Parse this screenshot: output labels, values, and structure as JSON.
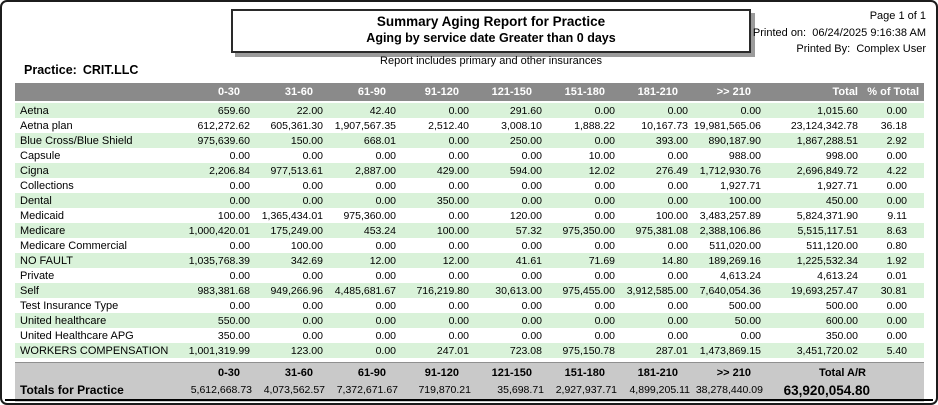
{
  "meta": {
    "page_label": "Page 1 of 1",
    "printed_on_label": "Printed on:",
    "printed_on_value": "06/24/2025  9:16:38 AM",
    "printed_by_label": "Printed By:",
    "printed_by_value": "Complex User"
  },
  "title": {
    "line1": "Summary Aging Report for Practice",
    "line2": "Aging by service date  Greater than 0 days",
    "subtitle": "Report includes primary and other insurances"
  },
  "practice": {
    "label": "Practice:",
    "name": "CRIT.LLC"
  },
  "table": {
    "columns": [
      "0-30",
      "31-60",
      "61-90",
      "91-120",
      "121-150",
      "151-180",
      "181-210",
      ">> 210",
      "Total",
      "% of Total"
    ],
    "rows": [
      {
        "name": "Aetna",
        "values": [
          "659.60",
          "22.00",
          "42.40",
          "0.00",
          "291.60",
          "0.00",
          "0.00",
          "0.00",
          "1,015.60",
          "0.00"
        ]
      },
      {
        "name": "Aetna plan",
        "values": [
          "612,272.62",
          "605,361.30",
          "1,907,567.35",
          "2,512.40",
          "3,008.10",
          "1,888.22",
          "10,167.73",
          "19,981,565.06",
          "23,124,342.78",
          "36.18"
        ]
      },
      {
        "name": "Blue Cross/Blue Shield",
        "values": [
          "975,639.60",
          "150.00",
          "668.01",
          "0.00",
          "250.00",
          "0.00",
          "393.00",
          "890,187.90",
          "1,867,288.51",
          "2.92"
        ]
      },
      {
        "name": "Capsule",
        "values": [
          "0.00",
          "0.00",
          "0.00",
          "0.00",
          "0.00",
          "10.00",
          "0.00",
          "988.00",
          "998.00",
          "0.00"
        ]
      },
      {
        "name": "Cigna",
        "values": [
          "2,206.84",
          "977,513.61",
          "2,887.00",
          "429.00",
          "594.00",
          "12.02",
          "276.49",
          "1,712,930.76",
          "2,696,849.72",
          "4.22"
        ]
      },
      {
        "name": "Collections",
        "values": [
          "0.00",
          "0.00",
          "0.00",
          "0.00",
          "0.00",
          "0.00",
          "0.00",
          "1,927.71",
          "1,927.71",
          "0.00"
        ]
      },
      {
        "name": "Dental",
        "values": [
          "0.00",
          "0.00",
          "0.00",
          "350.00",
          "0.00",
          "0.00",
          "0.00",
          "100.00",
          "450.00",
          "0.00"
        ]
      },
      {
        "name": "Medicaid",
        "values": [
          "100.00",
          "1,365,434.01",
          "975,360.00",
          "0.00",
          "120.00",
          "0.00",
          "100.00",
          "3,483,257.89",
          "5,824,371.90",
          "9.11"
        ]
      },
      {
        "name": "Medicare",
        "values": [
          "1,000,420.01",
          "175,249.00",
          "453.24",
          "100.00",
          "57.32",
          "975,350.00",
          "975,381.08",
          "2,388,106.86",
          "5,515,117.51",
          "8.63"
        ]
      },
      {
        "name": "Medicare Commercial",
        "values": [
          "0.00",
          "100.00",
          "0.00",
          "0.00",
          "0.00",
          "0.00",
          "0.00",
          "511,020.00",
          "511,120.00",
          "0.80"
        ]
      },
      {
        "name": "NO FAULT",
        "values": [
          "1,035,768.39",
          "342.69",
          "12.00",
          "12.00",
          "41.61",
          "71.69",
          "14.80",
          "189,269.16",
          "1,225,532.34",
          "1.92"
        ]
      },
      {
        "name": "Private",
        "values": [
          "0.00",
          "0.00",
          "0.00",
          "0.00",
          "0.00",
          "0.00",
          "0.00",
          "4,613.24",
          "4,613.24",
          "0.01"
        ]
      },
      {
        "name": "Self",
        "values": [
          "983,381.68",
          "949,266.96",
          "4,485,681.67",
          "716,219.80",
          "30,613.00",
          "975,455.00",
          "3,912,585.00",
          "7,640,054.36",
          "19,693,257.47",
          "30.81"
        ]
      },
      {
        "name": "Test Insurance Type",
        "values": [
          "0.00",
          "0.00",
          "0.00",
          "0.00",
          "0.00",
          "0.00",
          "0.00",
          "500.00",
          "500.00",
          "0.00"
        ]
      },
      {
        "name": "United healthcare",
        "values": [
          "550.00",
          "0.00",
          "0.00",
          "0.00",
          "0.00",
          "0.00",
          "0.00",
          "50.00",
          "600.00",
          "0.00"
        ]
      },
      {
        "name": "United Healthcare APG",
        "values": [
          "350.00",
          "0.00",
          "0.00",
          "0.00",
          "0.00",
          "0.00",
          "0.00",
          "0.00",
          "350.00",
          "0.00"
        ]
      },
      {
        "name": "WORKERS COMPENSATION",
        "values": [
          "1,001,319.99",
          "123.00",
          "0.00",
          "247.01",
          "723.08",
          "975,150.78",
          "287.01",
          "1,473,869.15",
          "3,451,720.02",
          "5.40"
        ]
      }
    ],
    "footer": {
      "columns": [
        "0-30",
        "31-60",
        "61-90",
        "91-120",
        "121-150",
        "151-180",
        "181-210",
        ">> 210"
      ],
      "total_ar_label": "Total A/R",
      "totals_label": "Totals for Practice",
      "values": [
        "5,612,668.73",
        "4,073,562.57",
        "7,372,671.67",
        "719,870.21",
        "35,698.71",
        "2,927,937.71",
        "4,899,205.11",
        "38,278,440.09"
      ],
      "total_ar_value": "63,920,054.80"
    }
  },
  "colors": {
    "row_green": "#d9f2d9",
    "header_gray": "#8a8a8a",
    "footer_gray": "#c9c9c9"
  }
}
